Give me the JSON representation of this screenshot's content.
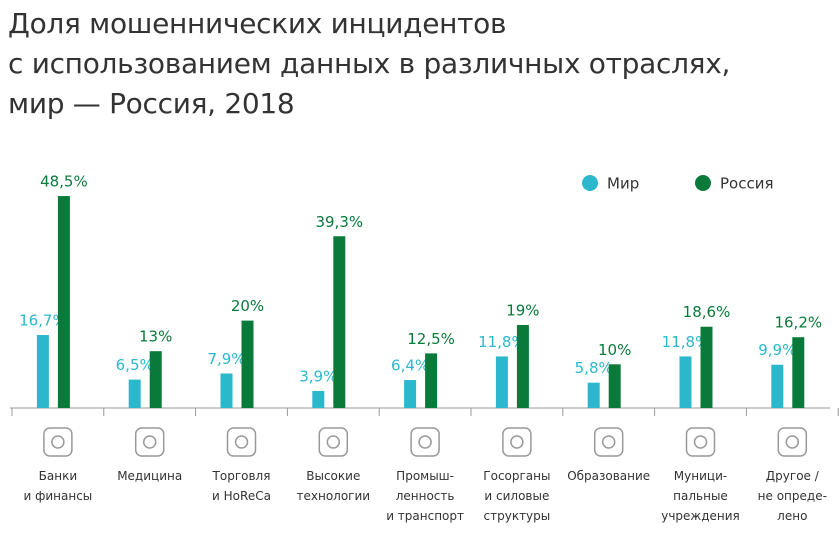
{
  "chart_data": {
    "type": "bar",
    "title": "Доля мошеннических инцидентов\nс использованием данных в различных отраслях,\nмир — Россия, 2018",
    "categories": [
      "Банки\nи финансы",
      "Медицина",
      "Торговля\nи HoReCa",
      "Высокие\nтехнологии",
      "Промыш-\nленность\nи транспорт",
      "Госорганы\nи силовые\nструктуры",
      "Образование",
      "Муници-\nпальные\nучреждения",
      "Другое /\nне опреде-\nлено"
    ],
    "series": [
      {
        "name": "Мир",
        "color": "#2bb8cc",
        "values": [
          16.7,
          6.5,
          7.9,
          3.9,
          6.4,
          11.8,
          5.8,
          11.8,
          9.9
        ],
        "value_labels": [
          "16,7%",
          "6,5%",
          "7,9%",
          "3,9%",
          "6,4%",
          "11,8%",
          "5,8%",
          "11,8%",
          "9,9%"
        ]
      },
      {
        "name": "Россия",
        "color": "#0a7a3a",
        "values": [
          48.5,
          13,
          20,
          39.3,
          12.5,
          19,
          10,
          18.6,
          16.2
        ],
        "value_labels": [
          "48,5%",
          "13%",
          "20%",
          "39,3%",
          "12,5%",
          "19%",
          "10%",
          "18,6%",
          "16,2%"
        ]
      }
    ],
    "legend": "top-right"
  }
}
